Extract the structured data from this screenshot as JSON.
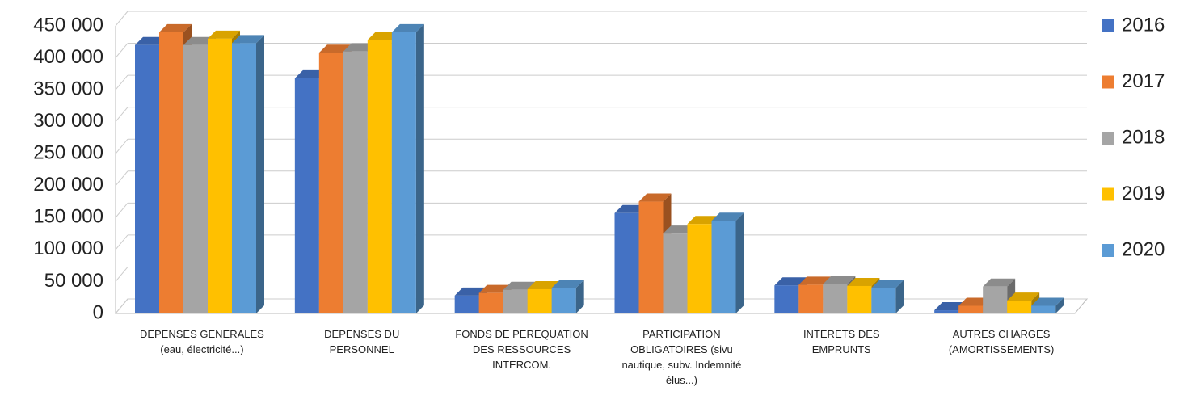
{
  "chart_data": {
    "type": "bar3d",
    "categories": [
      "DEPENSES GENERALES (eau, électricité...)",
      "DEPENSES DU PERSONNEL",
      "FONDS DE PEREQUATION DES RESSOURCES INTERCOM.",
      "PARTICIPATION OBLIGATOIRES (sivu nautique, subv. Indemnité élus...)",
      "INTERETS DES EMPRUNTS",
      "AUTRES CHARGES (AMORTISSEMENTS)"
    ],
    "series": [
      {
        "name": "2016",
        "color": "#4472c4",
        "values": [
          420000,
          368000,
          28000,
          157000,
          44000,
          5000
        ]
      },
      {
        "name": "2017",
        "color": "#ed7d31",
        "values": [
          440000,
          408000,
          32000,
          175000,
          45000,
          12000
        ]
      },
      {
        "name": "2018",
        "color": "#a5a5a5",
        "values": [
          420000,
          410000,
          37000,
          125000,
          46000,
          42000
        ]
      },
      {
        "name": "2019",
        "color": "#ffc000",
        "values": [
          430000,
          428000,
          38000,
          140000,
          43000,
          20000
        ]
      },
      {
        "name": "2020",
        "color": "#5b9bd5",
        "values": [
          423000,
          440000,
          40000,
          145000,
          40000,
          12000
        ]
      }
    ],
    "ylim": [
      0,
      450000
    ],
    "yticks": [
      0,
      {
        "value": 50000,
        "label": "50 000"
      },
      {
        "value": 100000,
        "label": "100 000"
      },
      {
        "value": 150000,
        "label": "150 000"
      },
      {
        "value": 200000,
        "label": "200 000"
      },
      {
        "value": 250000,
        "label": "250 000"
      },
      {
        "value": 300000,
        "label": "300 000"
      },
      {
        "value": 350000,
        "label": "350 000"
      },
      {
        "value": 400000,
        "label": "400 000"
      },
      {
        "value": 450000,
        "label": "450 000"
      }
    ],
    "grid": true,
    "legend": "right"
  }
}
